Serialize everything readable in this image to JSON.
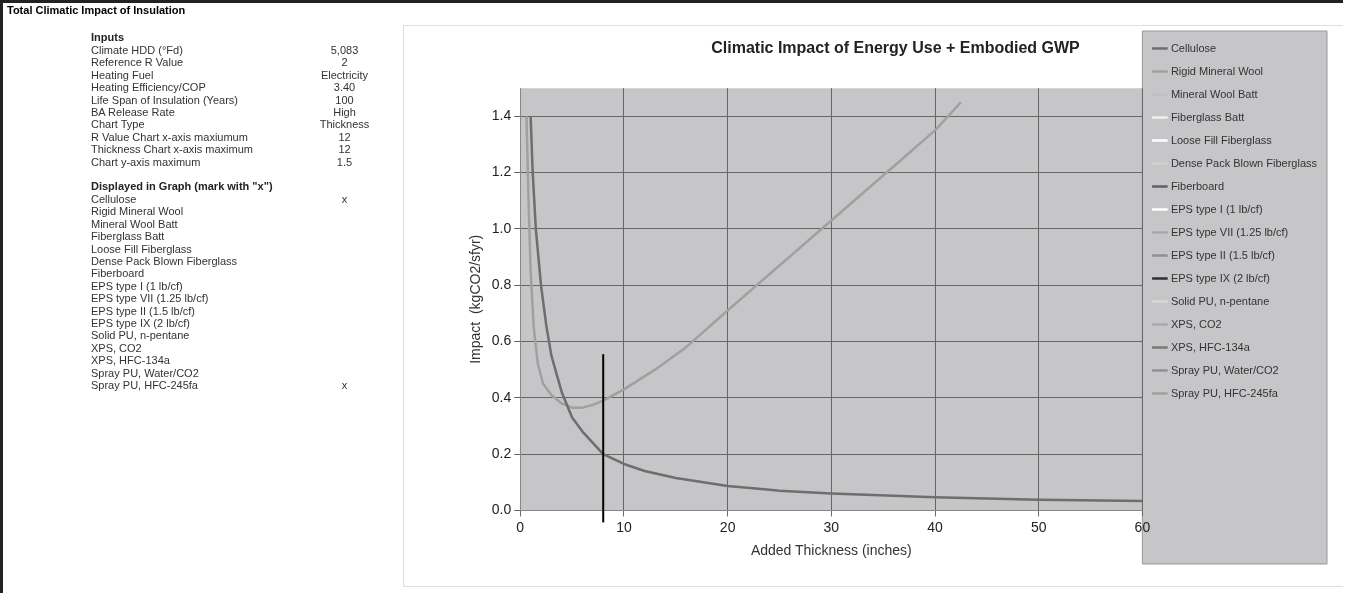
{
  "chart_data": [
    {
      "type": "other",
      "title": "Total Climatic Impact of Insulation",
      "subtitle": "Inputs",
      "categories": [
        "Climate HDD (°Fd)",
        "Reference R Value",
        "Heating Fuel",
        "Heating Efficiency/COP",
        "Life Span of Insulation (Years)",
        "BA Release Rate",
        "Chart Type",
        "R Value Chart x-axis maxiumum",
        "Thickness Chart x-axis maximum",
        "Chart y-axis maximum"
      ],
      "value_labels": [
        "5,083",
        "2",
        "Electricity",
        "3.40",
        "100",
        "High",
        "Thickness",
        "12",
        "12",
        "1.5"
      ]
    },
    {
      "type": "other",
      "title": "Displayed in Graph (mark with \"x\")",
      "categories": [
        "Cellulose",
        "Rigid Mineral Wool",
        "Mineral Wool Batt",
        "Fiberglass Batt",
        "Loose Fill Fiberglass",
        "Dense Pack Blown Fiberglass",
        "Fiberboard",
        "EPS type I (1 lb/cf)",
        "EPS type VII (1.25 lb/cf)",
        "EPS type II (1.5 lb/cf)",
        "EPS type IX (2 lb/cf)",
        "Solid PU, n-pentane",
        "XPS, CO2",
        "XPS, HFC-134a",
        "Spray PU, Water/CO2",
        "Spray PU, HFC-245fa"
      ],
      "value_labels": [
        "x",
        null,
        null,
        null,
        null,
        null,
        null,
        null,
        null,
        null,
        null,
        null,
        null,
        null,
        null,
        "x"
      ]
    },
    {
      "type": "line",
      "title": "Climatic Impact of Energy Use + Embodied GWP",
      "xlabel": "Added Thickness (inches)",
      "ylabel": "Impact  (kgCO2/sfyr)",
      "xlim": [
        0,
        60
      ],
      "xticks": [
        0,
        10,
        20,
        30,
        40,
        50,
        60
      ],
      "ylim": [
        0,
        1.5
      ],
      "yticks": [
        {
          "value": 0,
          "label": "0.0"
        },
        {
          "value": 0.2,
          "label": "0.2"
        },
        {
          "value": 0.4,
          "label": "0.4"
        },
        {
          "value": 0.6,
          "label": "0.6"
        },
        {
          "value": 0.8,
          "label": "0.8"
        },
        {
          "value": 1,
          "label": "1.0"
        },
        {
          "value": 1.2,
          "label": "1.2"
        },
        {
          "value": 1.4,
          "label": "1.4"
        }
      ],
      "grid": true,
      "legend": "right",
      "marker": "none",
      "ref_lines": [
        {
          "axis": "x",
          "value": 8,
          "color": "#000000"
        }
      ],
      "series": [
        {
          "name": "Cellulose",
          "color": "#6e6e6e",
          "x": [
            1.0,
            1.2,
            1.5,
            2,
            2.5,
            3,
            4,
            5,
            6,
            8,
            10,
            12,
            15,
            20,
            25,
            30,
            40,
            50,
            60
          ],
          "values": [
            1.4,
            1.2,
            1.0,
            0.8,
            0.66,
            0.55,
            0.42,
            0.33,
            0.28,
            0.2,
            0.165,
            0.14,
            0.115,
            0.087,
            0.07,
            0.06,
            0.047,
            0.038,
            0.033
          ]
        },
        {
          "name": "Rigid Mineral Wool",
          "color": "#a0a0a0"
        },
        {
          "name": "Mineral Wool Batt",
          "color": "#c0c0c0"
        },
        {
          "name": "Fiberglass Batt",
          "color": "#f0f0f0"
        },
        {
          "name": "Loose Fill Fiberglass",
          "color": "#ffffff"
        },
        {
          "name": "Dense Pack Blown Fiberglass",
          "color": "#d0d0d0"
        },
        {
          "name": "Fiberboard",
          "color": "#606060"
        },
        {
          "name": "EPS type I (1 lb/cf)",
          "color": "#ffffff"
        },
        {
          "name": "EPS type VII (1.25 lb/cf)",
          "color": "#a8a8a8"
        },
        {
          "name": "EPS type II (1.5 lb/cf)",
          "color": "#909090"
        },
        {
          "name": "EPS type IX (2 lb/cf)",
          "color": "#303030"
        },
        {
          "name": "Solid PU, n-pentane",
          "color": "#d8d8d8"
        },
        {
          "name": "XPS, CO2",
          "color": "#a8a8a8"
        },
        {
          "name": "XPS, HFC-134a",
          "color": "#787878"
        },
        {
          "name": "Spray PU, Water/CO2",
          "color": "#909090"
        },
        {
          "name": "Spray PU, HFC-245fa",
          "color": "#a0a0a0",
          "x": [
            0.6,
            0.8,
            1,
            1.3,
            1.7,
            2.2,
            3,
            4,
            5,
            6,
            7,
            8,
            10,
            13,
            16,
            20,
            25,
            30,
            35,
            40,
            42.5
          ],
          "values": [
            1.4,
            1.1,
            0.85,
            0.65,
            0.52,
            0.45,
            0.41,
            0.38,
            0.365,
            0.365,
            0.375,
            0.39,
            0.43,
            0.5,
            0.58,
            0.71,
            0.87,
            1.03,
            1.19,
            1.35,
            1.45
          ]
        }
      ]
    }
  ]
}
